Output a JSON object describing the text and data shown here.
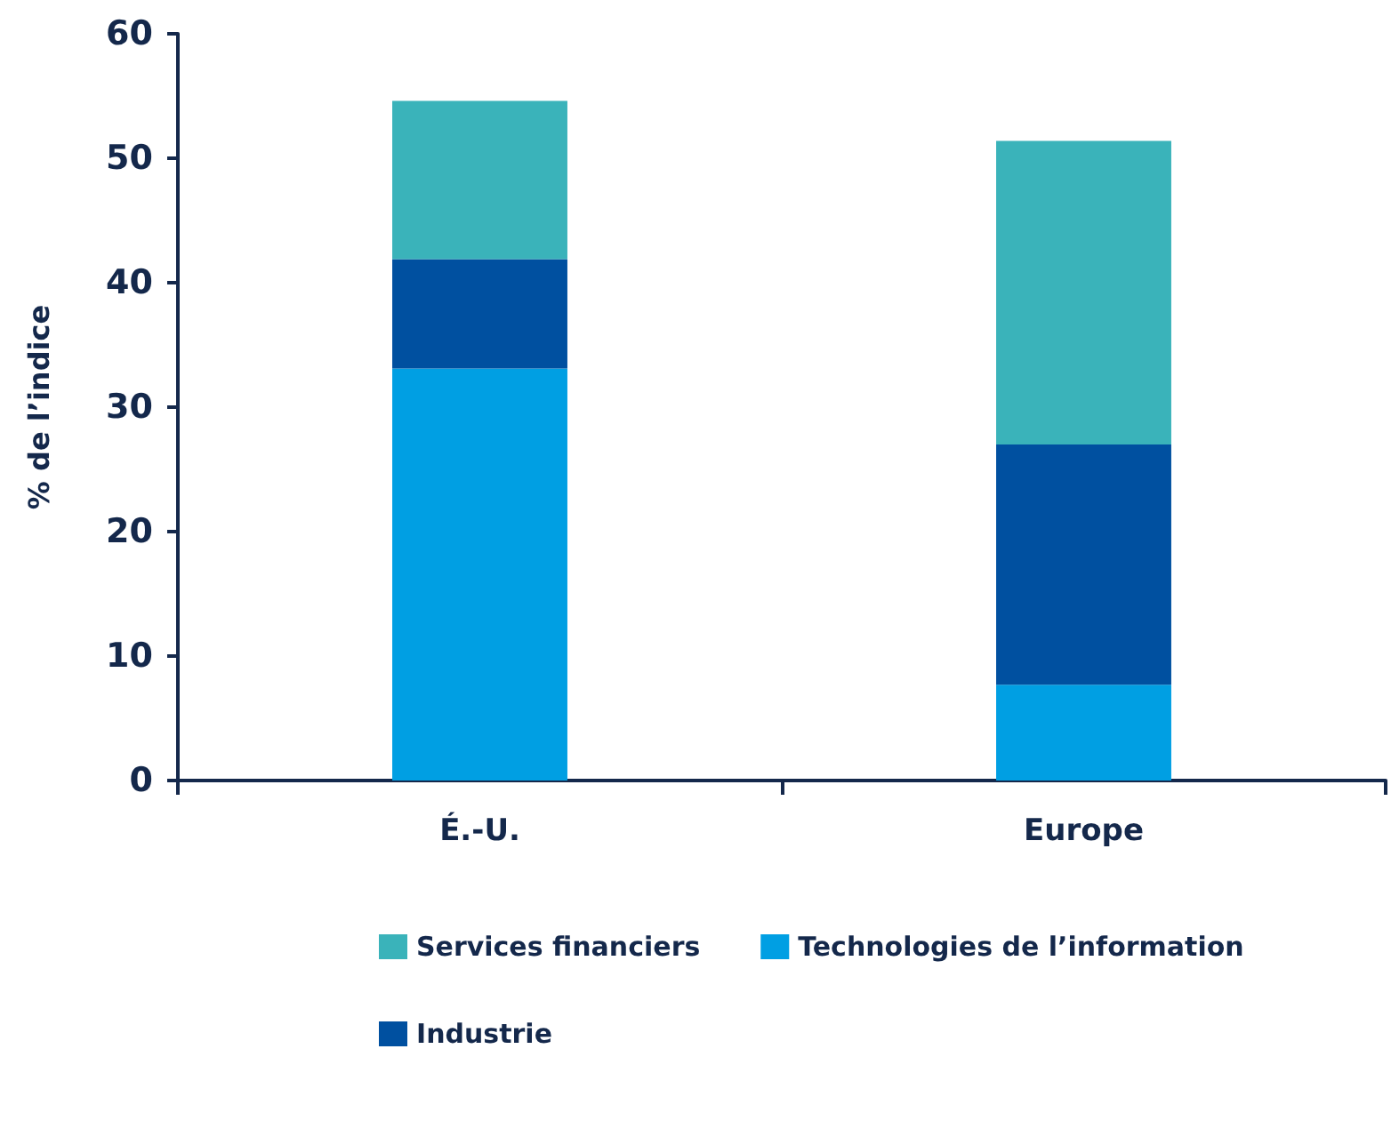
{
  "chart_data": {
    "type": "bar",
    "stacked": true,
    "ylabel": "% de l’indice",
    "categories": [
      "É.-U.",
      "Europe"
    ],
    "series": [
      {
        "name": "Technologies de l’information",
        "color": "#009fe3",
        "values": [
          33.1,
          7.7
        ]
      },
      {
        "name": "Industrie",
        "color": "#0050a0",
        "values": [
          8.8,
          19.3
        ]
      },
      {
        "name": "Services financiers",
        "color": "#3ab3ba",
        "values": [
          12.7,
          24.4
        ]
      }
    ],
    "ylim": [
      0,
      60
    ],
    "yticks": [
      0,
      10,
      20,
      30,
      40,
      50,
      60
    ],
    "grid": false,
    "legend": "bottom"
  }
}
